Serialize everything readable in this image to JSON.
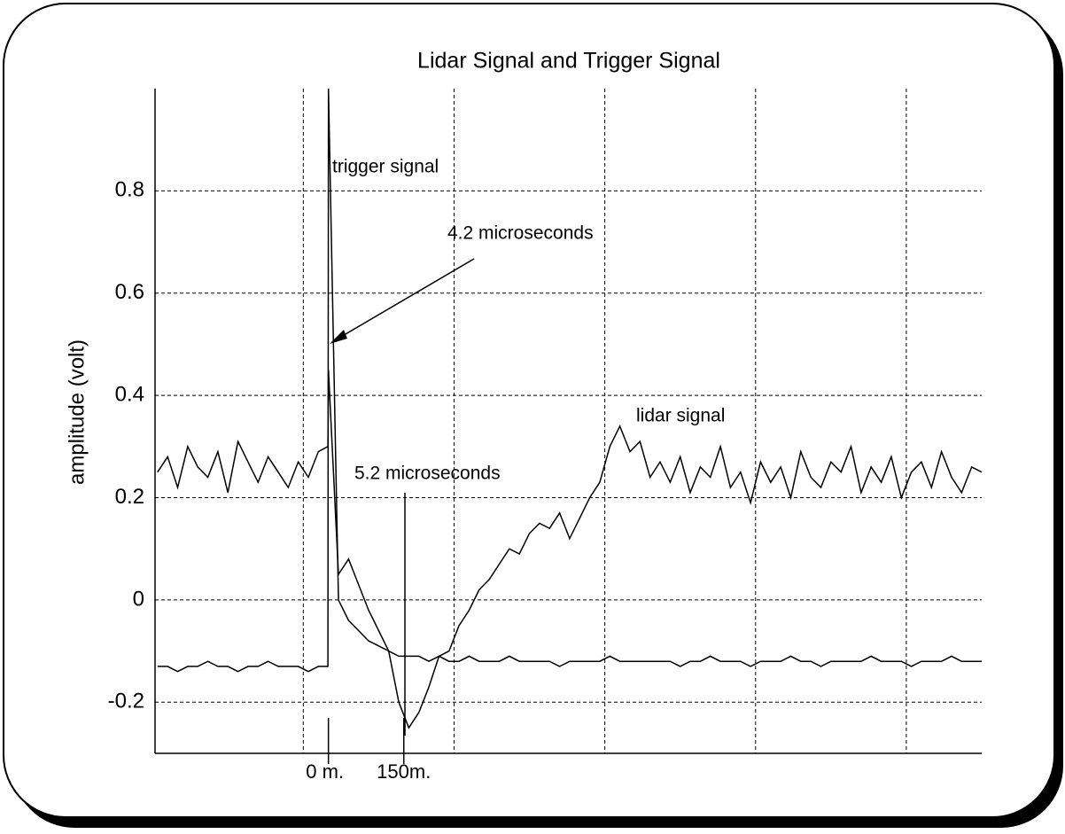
{
  "chart_data": {
    "type": "line",
    "title": "Lidar Signal and Trigger Signal",
    "y_label": "amplitude (volt)",
    "annotations": [
      "trigger signal",
      "4.2 microseconds",
      "5.2 microseconds",
      "lidar signal"
    ],
    "x": [
      -340,
      -320,
      -300,
      -280,
      -260,
      -240,
      -220,
      -200,
      -180,
      -160,
      -140,
      -120,
      -100,
      -80,
      -60,
      -40,
      -20,
      -1,
      0,
      20,
      40,
      60,
      80,
      100,
      120,
      140,
      160,
      180,
      200,
      220,
      240,
      260,
      280,
      300,
      320,
      340,
      360,
      380,
      400,
      420,
      440,
      460,
      480,
      500,
      520,
      540,
      560,
      580,
      600,
      620,
      640,
      660,
      680,
      700,
      720,
      740,
      760,
      780,
      800,
      820,
      840,
      860,
      880,
      900,
      920,
      940,
      960,
      980,
      1000,
      1020,
      1040,
      1060,
      1080,
      1100,
      1120,
      1140,
      1160,
      1180,
      1200,
      1220,
      1240,
      1260,
      1280,
      1300
    ],
    "series": [
      {
        "name": "lidar signal",
        "color": "#000000",
        "values": [
          0.25,
          0.28,
          0.22,
          0.3,
          0.26,
          0.24,
          0.29,
          0.21,
          0.31,
          0.27,
          0.23,
          0.28,
          0.25,
          0.22,
          0.27,
          0.24,
          0.29,
          0.3,
          0.45,
          0.05,
          0.08,
          0.03,
          -0.02,
          -0.06,
          -0.1,
          -0.2,
          -0.25,
          -0.22,
          -0.17,
          -0.11,
          -0.1,
          -0.05,
          -0.02,
          0.02,
          0.04,
          0.07,
          0.1,
          0.09,
          0.13,
          0.15,
          0.14,
          0.17,
          0.12,
          0.16,
          0.2,
          0.23,
          0.3,
          0.34,
          0.29,
          0.31,
          0.24,
          0.27,
          0.23,
          0.28,
          0.21,
          0.26,
          0.24,
          0.3,
          0.22,
          0.25,
          0.19,
          0.27,
          0.23,
          0.26,
          0.2,
          0.29,
          0.24,
          0.22,
          0.27,
          0.25,
          0.3,
          0.21,
          0.26,
          0.23,
          0.28,
          0.2,
          0.25,
          0.27,
          0.22,
          0.29,
          0.24,
          0.21,
          0.26,
          0.25
        ]
      },
      {
        "name": "trigger signal",
        "color": "#000000",
        "values": [
          -0.13,
          -0.13,
          -0.14,
          -0.13,
          -0.13,
          -0.12,
          -0.13,
          -0.13,
          -0.14,
          -0.13,
          -0.13,
          -0.12,
          -0.13,
          -0.13,
          -0.13,
          -0.14,
          -0.13,
          -0.13,
          1.0,
          0.0,
          -0.04,
          -0.06,
          -0.08,
          -0.09,
          -0.1,
          -0.11,
          -0.11,
          -0.11,
          -0.12,
          -0.11,
          -0.12,
          -0.12,
          -0.11,
          -0.12,
          -0.12,
          -0.12,
          -0.11,
          -0.12,
          -0.12,
          -0.12,
          -0.12,
          -0.13,
          -0.12,
          -0.12,
          -0.12,
          -0.12,
          -0.11,
          -0.12,
          -0.12,
          -0.12,
          -0.12,
          -0.12,
          -0.12,
          -0.13,
          -0.12,
          -0.12,
          -0.11,
          -0.12,
          -0.12,
          -0.12,
          -0.13,
          -0.12,
          -0.12,
          -0.12,
          -0.11,
          -0.12,
          -0.12,
          -0.13,
          -0.12,
          -0.12,
          -0.12,
          -0.12,
          -0.11,
          -0.12,
          -0.12,
          -0.12,
          -0.13,
          -0.12,
          -0.12,
          -0.12,
          -0.11,
          -0.12,
          -0.12,
          -0.12
        ]
      }
    ],
    "xlim": [
      -345,
      1300
    ],
    "xticks": [
      {
        "value": 0,
        "label": "0 m."
      },
      {
        "value": 150,
        "label": "150m."
      }
    ],
    "xgrid": [
      -50,
      250,
      550,
      850,
      1150
    ],
    "ylim": [
      -0.3,
      1.0
    ],
    "yticks": [
      -0.2,
      0,
      0.2,
      0.4,
      0.6,
      0.8
    ],
    "grid": true
  }
}
